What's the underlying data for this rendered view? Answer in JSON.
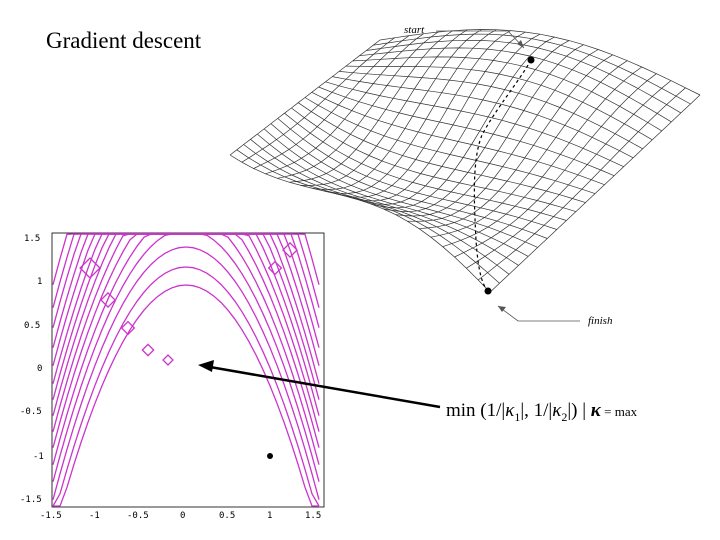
{
  "title": "Gradient descent",
  "surface": {
    "start_label": "start",
    "finish_label": "finish"
  },
  "contour_plot": {
    "x_ticks": [
      "-1.5",
      "-1",
      "-0.5",
      "0",
      "0.5",
      "1",
      "1.5"
    ],
    "y_ticks": [
      "1.5",
      "1",
      "0.5",
      "0",
      "-0.5",
      "-1",
      "-1.5"
    ],
    "line_color": "#cc33cc"
  },
  "formula": {
    "prefix": "min (1/|",
    "k": "κ",
    "sub1": "1",
    "mid": "|, 1/|",
    "sub2": "2",
    "suffix": "|) | ",
    "bold_k": "κ",
    "tail": " = max"
  }
}
